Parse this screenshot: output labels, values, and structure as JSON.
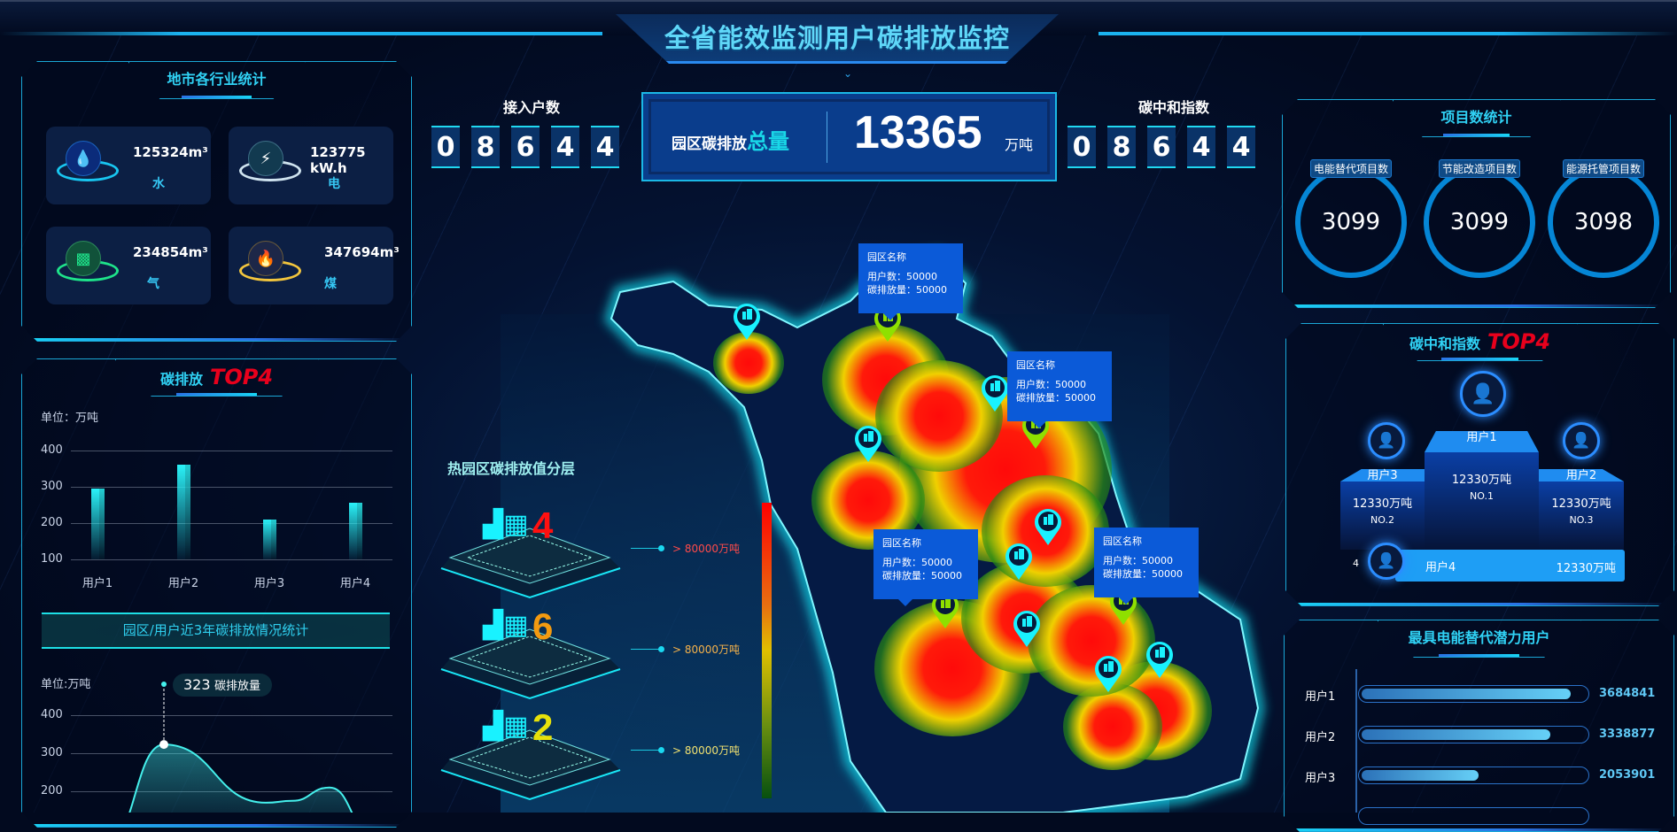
{
  "title": "全省能效监测用户碳排放监控",
  "industry": {
    "title": "地市各行业统计",
    "items": [
      {
        "value": "125324m³",
        "label": "水",
        "icon": "water-drop-icon",
        "color": "#18c6f0"
      },
      {
        "value": "123775 kW.h",
        "label": "电",
        "icon": "lightning-icon",
        "color": "#cfe3ef"
      },
      {
        "value": "234854m³",
        "label": "气",
        "icon": "gas-icon",
        "color": "#1ee38a"
      },
      {
        "value": "347694m³",
        "label": "煤",
        "icon": "flame-icon",
        "color": "#f2c53d"
      }
    ]
  },
  "emission_top": {
    "title": "碳排放",
    "badge": "TOP4",
    "unit": "单位：万吨"
  },
  "banner": "园区/用户近3年碳排放情况统计",
  "trend": {
    "unit": "单位:万吨",
    "tooltip_value": "323",
    "tooltip_label": "碳排放量"
  },
  "chart_data": [
    {
      "type": "bar",
      "categories": [
        "用户1",
        "用户2",
        "用户3",
        "用户4"
      ],
      "values": [
        295,
        360,
        210,
        255
      ],
      "ylim": [
        100,
        400
      ],
      "yticks": [
        400,
        300,
        200,
        100
      ],
      "ylabel": "单位：万吨"
    },
    {
      "type": "area",
      "values": [
        60,
        323,
        170,
        175,
        210,
        90
      ],
      "ylim": [
        100,
        400
      ],
      "yticks": [
        400,
        300,
        200
      ],
      "ylabel": "单位:万吨",
      "highlight": {
        "index": 1,
        "value": 323,
        "label": "碳排放量"
      }
    }
  ],
  "access": {
    "label": "接入户数",
    "digits": [
      "0",
      "8",
      "6",
      "4",
      "4"
    ]
  },
  "total": {
    "label_a": "园区碳排放",
    "label_b": "总量",
    "value": "13365",
    "unit": "万吨"
  },
  "neutral": {
    "label": "碳中和指数",
    "digits": [
      "0",
      "8",
      "6",
      "4",
      "4"
    ]
  },
  "layers": {
    "title": "热园区碳排放值分层",
    "items": [
      {
        "count": "4",
        "color": "#ff1010",
        "label": "> 80000万吨",
        "label_color": "#ff4a4a"
      },
      {
        "count": "6",
        "color": "#f39a10",
        "label": "> 80000万吨",
        "label_color": "#f6b24a"
      },
      {
        "count": "2",
        "color": "#e6e10a",
        "label": "> 80000万吨",
        "label_color": "#f0e070"
      }
    ]
  },
  "map_tips": [
    {
      "name": "园区名称",
      "users": "用户数：50000",
      "emission": "碳排放量：50000"
    },
    {
      "name": "园区名称",
      "users": "用户数：50000",
      "emission": "碳排放量：50000"
    },
    {
      "name": "园区名称",
      "users": "用户数：50000",
      "emission": "碳排放量：50000"
    },
    {
      "name": "园区名称",
      "users": "用户数：50000",
      "emission": "碳排放量：50000"
    }
  ],
  "projects": {
    "title": "项目数统计",
    "items": [
      {
        "label": "电能替代项目数",
        "value": "3099"
      },
      {
        "label": "节能改造项目数",
        "value": "3099"
      },
      {
        "label": "能源托管项目数",
        "value": "3098"
      }
    ]
  },
  "neutral_top": {
    "title": "碳中和指数",
    "badge": "TOP4",
    "first": {
      "name": "用户1",
      "value": "12330万吨",
      "rank": "NO.1"
    },
    "second": {
      "name": "用户3",
      "value": "12330万吨",
      "rank": "NO.2"
    },
    "third": {
      "name": "用户2",
      "value": "12330万吨",
      "rank": "NO.3"
    },
    "fourth": {
      "num": "4",
      "name": "用户4",
      "value": "12330万吨"
    }
  },
  "potential": {
    "title": "最具电能替代潜力用户",
    "rows": [
      {
        "name": "用户1",
        "value": "3684841",
        "pct": 0.93
      },
      {
        "name": "用户2",
        "value": "3338877",
        "pct": 0.84
      },
      {
        "name": "用户3",
        "value": "2053901",
        "pct": 0.52
      }
    ]
  }
}
